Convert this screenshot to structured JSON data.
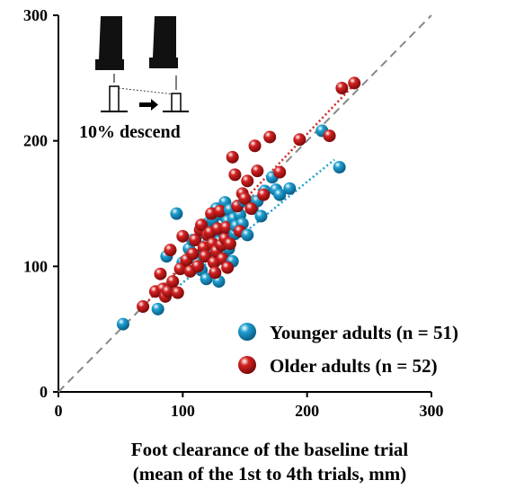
{
  "chart_data": {
    "type": "scatter",
    "xlabel_line1": "Foot clearance of the baseline trial",
    "xlabel_line2": "(mean of the 1st to 4th trials, mm)",
    "xlim": [
      0,
      300
    ],
    "ylim": [
      0,
      300
    ],
    "x_ticks": [
      "0",
      "100",
      "200",
      "300"
    ],
    "y_ticks": [
      "0",
      "100",
      "200",
      "300"
    ],
    "grid": false,
    "identity_line": true,
    "legend_position": "bottom-right",
    "inset_label": "10% descend",
    "series": [
      {
        "name": "Younger adults (n = 51)",
        "color": "#1e9fd0",
        "trend": [
          [
            95,
            83
          ],
          [
            222,
            185
          ]
        ],
        "points": [
          [
            52,
            54
          ],
          [
            80,
            66
          ],
          [
            87,
            108
          ],
          [
            95,
            142
          ],
          [
            100,
            103
          ],
          [
            105,
            114
          ],
          [
            108,
            121
          ],
          [
            110,
            109
          ],
          [
            112,
            103
          ],
          [
            115,
            97
          ],
          [
            116,
            127
          ],
          [
            118,
            132
          ],
          [
            119,
            90
          ],
          [
            120,
            118
          ],
          [
            121,
            135
          ],
          [
            122,
            112
          ],
          [
            124,
            137
          ],
          [
            125,
            123
          ],
          [
            126,
            104
          ],
          [
            127,
            146
          ],
          [
            128,
            113
          ],
          [
            129,
            88
          ],
          [
            130,
            120
          ],
          [
            131,
            128
          ],
          [
            132,
            141
          ],
          [
            133,
            108
          ],
          [
            134,
            151
          ],
          [
            135,
            120
          ],
          [
            136,
            136
          ],
          [
            137,
            114
          ],
          [
            138,
            145
          ],
          [
            139,
            130
          ],
          [
            140,
            104
          ],
          [
            141,
            138
          ],
          [
            142,
            126
          ],
          [
            143,
            132
          ],
          [
            144,
            148
          ],
          [
            146,
            141
          ],
          [
            148,
            134
          ],
          [
            150,
            152
          ],
          [
            152,
            125
          ],
          [
            156,
            146
          ],
          [
            160,
            152
          ],
          [
            163,
            140
          ],
          [
            166,
            160
          ],
          [
            172,
            171
          ],
          [
            175,
            161
          ],
          [
            178,
            157
          ],
          [
            186,
            162
          ],
          [
            212,
            208
          ],
          [
            226,
            179
          ]
        ]
      },
      {
        "name": "Older adults (n = 52)",
        "color": "#d42222",
        "trend": [
          [
            65,
            65
          ],
          [
            240,
            247
          ]
        ],
        "points": [
          [
            68,
            68
          ],
          [
            78,
            80
          ],
          [
            82,
            94
          ],
          [
            84,
            82
          ],
          [
            86,
            76
          ],
          [
            88,
            80
          ],
          [
            90,
            113
          ],
          [
            92,
            88
          ],
          [
            96,
            79
          ],
          [
            98,
            98
          ],
          [
            100,
            124
          ],
          [
            103,
            105
          ],
          [
            106,
            96
          ],
          [
            108,
            110
          ],
          [
            110,
            121
          ],
          [
            112,
            100
          ],
          [
            114,
            129
          ],
          [
            115,
            133
          ],
          [
            117,
            115
          ],
          [
            118,
            108
          ],
          [
            120,
            125
          ],
          [
            122,
            127
          ],
          [
            123,
            142
          ],
          [
            124,
            118
          ],
          [
            125,
            103
          ],
          [
            126,
            95
          ],
          [
            127,
            112
          ],
          [
            128,
            130
          ],
          [
            130,
            144
          ],
          [
            131,
            117
          ],
          [
            132,
            106
          ],
          [
            134,
            122
          ],
          [
            135,
            131
          ],
          [
            136,
            99
          ],
          [
            138,
            118
          ],
          [
            140,
            187
          ],
          [
            142,
            173
          ],
          [
            144,
            148
          ],
          [
            146,
            128
          ],
          [
            148,
            158
          ],
          [
            150,
            154
          ],
          [
            152,
            168
          ],
          [
            155,
            146
          ],
          [
            158,
            196
          ],
          [
            160,
            176
          ],
          [
            165,
            157
          ],
          [
            170,
            203
          ],
          [
            178,
            175
          ],
          [
            194,
            201
          ],
          [
            218,
            204
          ],
          [
            228,
            242
          ],
          [
            238,
            246
          ]
        ]
      }
    ]
  }
}
